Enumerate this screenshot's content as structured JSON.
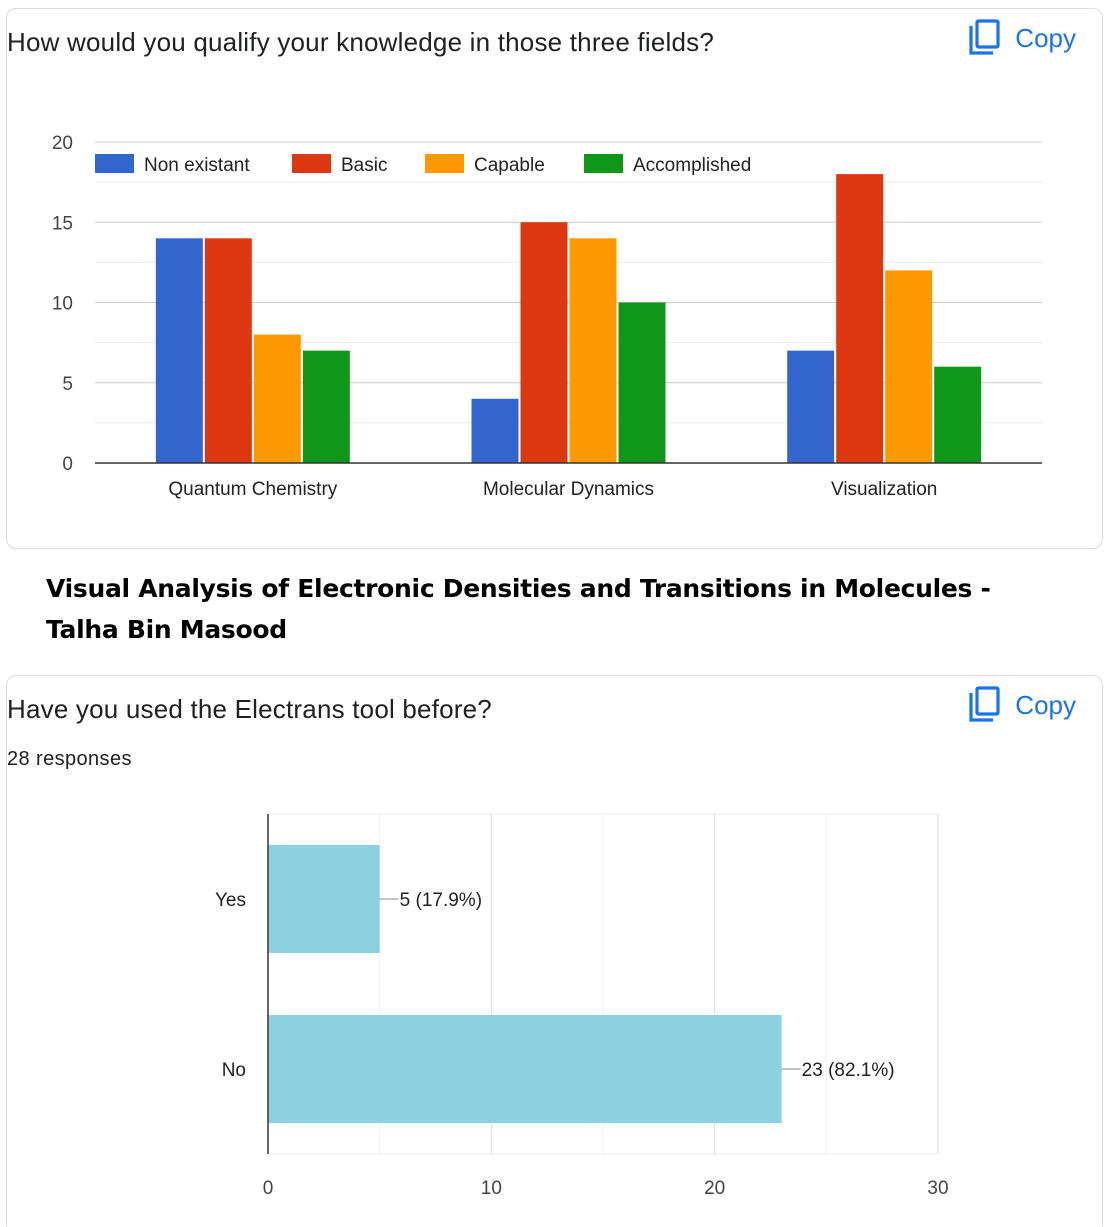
{
  "question1": {
    "title": "How would you qualify your knowledge in those three fields?",
    "copy_label": "Copy"
  },
  "section": {
    "heading": "Visual Analysis of Electronic Densities and Transitions in Molecules - Talha Bin Masood"
  },
  "question2": {
    "title": "Have you used the Electrans tool before?",
    "responses": "28 responses",
    "copy_label": "Copy"
  },
  "colors": {
    "accent": "#1a73e8",
    "non_existant": "#3366cc",
    "basic": "#dc3912",
    "capable": "#ff9900",
    "accomplished": "#109618",
    "yes_no_bar": "#8dd1e1"
  },
  "chart_data": [
    {
      "type": "bar",
      "categories": [
        "Quantum Chemistry",
        "Molecular Dynamics",
        "Visualization"
      ],
      "series": [
        {
          "name": "Non existant",
          "values": [
            14,
            4,
            7
          ],
          "color": "#3366cc"
        },
        {
          "name": "Basic",
          "values": [
            14,
            15,
            18
          ],
          "color": "#dc3912"
        },
        {
          "name": "Capable",
          "values": [
            8,
            14,
            12
          ],
          "color": "#ff9900"
        },
        {
          "name": "Accomplished",
          "values": [
            7,
            10,
            6
          ],
          "color": "#109618"
        }
      ],
      "ylim": [
        0,
        20
      ],
      "yticks": [
        "0",
        "5",
        "10",
        "15",
        "20"
      ],
      "legend": "top",
      "grid": true
    },
    {
      "type": "bar",
      "orientation": "horizontal",
      "categories": [
        "Yes",
        "No"
      ],
      "values": [
        5,
        23
      ],
      "labels": [
        "5 (17.9%)",
        "23 (82.1%)"
      ],
      "xlim": [
        0,
        30
      ],
      "xticks": [
        "0",
        "10",
        "20",
        "30"
      ],
      "color": "#8dd1e1",
      "grid": true
    }
  ]
}
